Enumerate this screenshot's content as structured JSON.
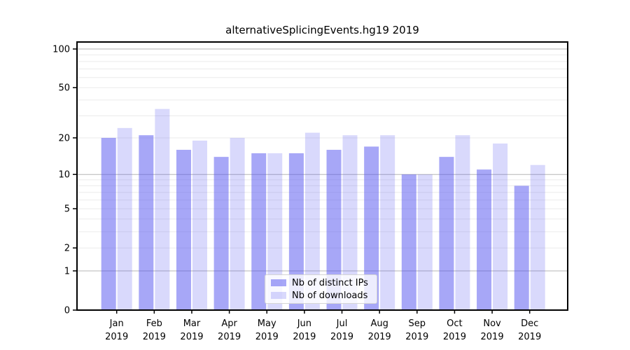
{
  "title": "alternativeSplicingEvents.hg19 2019",
  "chart_data": {
    "type": "bar",
    "title": "alternativeSplicingEvents.hg19 2019",
    "categories": [
      "Jan",
      "Feb",
      "Mar",
      "Apr",
      "May",
      "Jun",
      "Jul",
      "Aug",
      "Sep",
      "Oct",
      "Nov",
      "Dec"
    ],
    "year_label": "2019",
    "series": [
      {
        "name": "Nb of distinct IPs",
        "color": "rgba(80,80,240,0.50)",
        "values": [
          20,
          21,
          16,
          14,
          15,
          15,
          16,
          17,
          10,
          14,
          11,
          8
        ]
      },
      {
        "name": "Nb of downloads",
        "color": "rgba(80,80,240,0.22)",
        "values": [
          24,
          34,
          19,
          20,
          15,
          22,
          21,
          21,
          10,
          21,
          18,
          12
        ]
      }
    ],
    "yaxis": {
      "scale": "log10(1+v)",
      "ticks": [
        0,
        1,
        2,
        5,
        10,
        20,
        50,
        100
      ],
      "major_grid": [
        1,
        10,
        100
      ],
      "minor_grid": [
        2,
        3,
        4,
        5,
        6,
        7,
        8,
        9,
        20,
        30,
        40,
        50,
        60,
        70,
        80,
        90
      ],
      "ylim": [
        0,
        113
      ]
    },
    "xlabel": "",
    "ylabel": "",
    "grid": true,
    "legend_position": "lower center"
  },
  "colors": {
    "grid_minor": "#ebebeb",
    "grid_major": "#b5b5b5",
    "spine": "#000000",
    "tick_text": "#000000",
    "background": "#ffffff"
  }
}
